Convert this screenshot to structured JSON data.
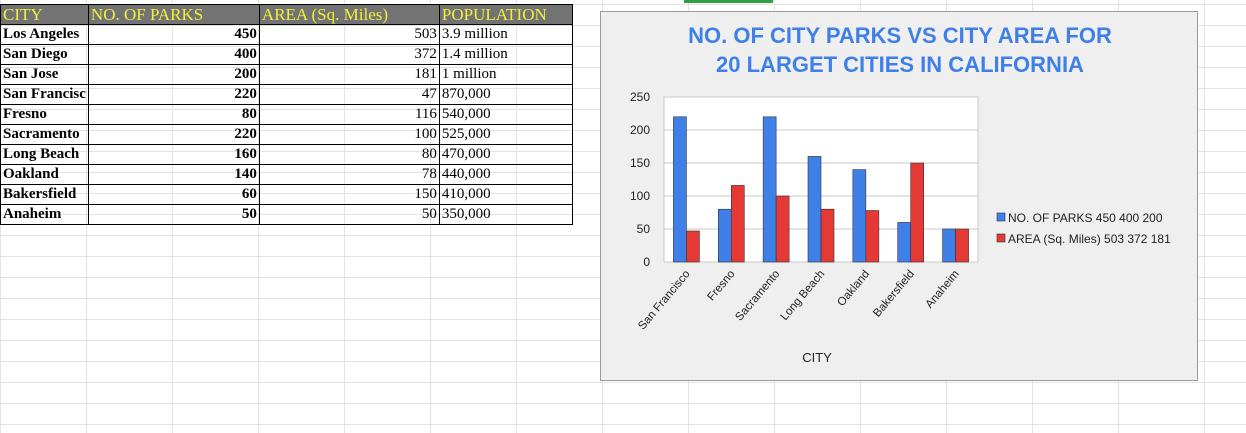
{
  "table": {
    "headers": [
      "CITY",
      "NO. OF PARKS",
      "AREA (Sq. Miles)",
      "POPULATION"
    ],
    "rows": [
      {
        "city": "Los Angeles",
        "parks": "450",
        "area": "503",
        "population": "3.9 million"
      },
      {
        "city": "San Diego",
        "parks": "400",
        "area": "372",
        "population": "1.4 million"
      },
      {
        "city": "San Jose",
        "parks": "200",
        "area": "181",
        "population": "1 million"
      },
      {
        "city": "San Francisc",
        "parks": "220",
        "area": "47",
        "population": "870,000"
      },
      {
        "city": "Fresno",
        "parks": "80",
        "area": "116",
        "population": "540,000"
      },
      {
        "city": "Sacramento",
        "parks": "220",
        "area": "100",
        "population": "525,000"
      },
      {
        "city": "Long Beach",
        "parks": "160",
        "area": "80",
        "population": "470,000"
      },
      {
        "city": "Oakland",
        "parks": "140",
        "area": "78",
        "population": "440,000"
      },
      {
        "city": "Bakersfield",
        "parks": "60",
        "area": "150",
        "population": "410,000"
      },
      {
        "city": "Anaheim",
        "parks": "50",
        "area": "50",
        "population": "350,000"
      }
    ]
  },
  "chart_data": {
    "type": "bar",
    "title_line1": "NO. OF CITY PARKS VS CITY AREA FOR",
    "title_line2": "20 LARGET CITIES IN CALIFORNIA",
    "categories": [
      "San Francisco",
      "Fresno",
      "Sacramento",
      "Long Beach",
      "Oakland",
      "Bakersfield",
      "Anaheim"
    ],
    "series": [
      {
        "name": "NO. OF PARKS 450 400 200",
        "values": [
          220,
          80,
          220,
          160,
          140,
          60,
          50
        ],
        "color": "#3f7fe8"
      },
      {
        "name": "AREA (Sq. Miles) 503 372 181",
        "values": [
          47,
          116,
          100,
          80,
          78,
          150,
          50
        ],
        "color": "#e53935"
      }
    ],
    "xlabel": "CITY",
    "ylabel": "",
    "ylim": [
      0,
      250
    ],
    "yticks": [
      "0",
      "50",
      "100",
      "150",
      "200",
      "250"
    ],
    "grid": true,
    "legend_position": "right",
    "title_color": "#3f7fe8"
  }
}
